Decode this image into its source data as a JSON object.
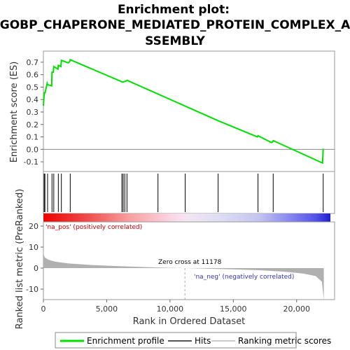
{
  "title_lines": [
    "Enrichment plot:",
    "GOBP_CHAPERONE_MEDIATED_PROTEIN_COMPLEX_A",
    "SSEMBLY"
  ],
  "colors": {
    "es_line": "#00e000",
    "hits": "#000000",
    "zero_line": "#888888",
    "metric_fill": "#b0b0b0",
    "pos_text": "#cc0000",
    "neg_text": "#3333bb",
    "dashed": "#aaaaaa"
  },
  "chart_data": {
    "type": "line",
    "es_panel": {
      "ylabel": "Enrichment score (ES)",
      "ylim": [
        -0.15,
        0.75
      ],
      "yticks": [
        -0.1,
        0.0,
        0.1,
        0.2,
        0.3,
        0.4,
        0.5,
        0.6,
        0.7
      ],
      "ytick_labels": [
        "-0.1",
        "0.0",
        "0.1",
        "0.2",
        "0.3",
        "0.4",
        "0.5",
        "0.6",
        "0.7"
      ],
      "series": [
        {
          "name": "Enrichment profile",
          "x": [
            0,
            60,
            100,
            120,
            300,
            330,
            650,
            680,
            780,
            820,
            1150,
            1180,
            1380,
            1420,
            1950,
            2080,
            2120,
            6150,
            6300,
            6380,
            6430,
            6550,
            6600,
            13800,
            16900,
            16950,
            18000,
            18100,
            18150,
            22050,
            22100
          ],
          "y": [
            0.35,
            0.44,
            0.46,
            0.45,
            0.53,
            0.52,
            0.51,
            0.62,
            0.62,
            0.665,
            0.645,
            0.675,
            0.665,
            0.715,
            0.695,
            0.705,
            0.72,
            0.545,
            0.54,
            0.545,
            0.545,
            0.55,
            0.555,
            0.23,
            0.1,
            0.11,
            0.055,
            0.06,
            0.07,
            -0.11,
            0.005
          ]
        }
      ]
    },
    "hits": [
      60,
      120,
      330,
      680,
      820,
      1180,
      1420,
      2120,
      6200,
      6300,
      6430,
      6600,
      9050,
      11200,
      13800,
      16950,
      18150,
      22100
    ],
    "metric_panel": {
      "ylabel": "Ranked list metric (PreRanked)",
      "ylim": [
        -15,
        22
      ],
      "yticks": [
        -10,
        0,
        10,
        20
      ],
      "ytick_labels": [
        "-10",
        "0",
        "10",
        "20"
      ],
      "profile_x": [
        0,
        30,
        100,
        300,
        600,
        1000,
        2000,
        4000,
        6000,
        8000,
        10000,
        11178,
        13000,
        15000,
        17000,
        19000,
        20500,
        21500,
        22000,
        22150
      ],
      "profile_y": [
        8,
        6.5,
        5.2,
        4.3,
        3.6,
        3.0,
        2.2,
        1.4,
        0.9,
        0.5,
        0.15,
        0,
        -0.3,
        -0.6,
        -1.0,
        -1.7,
        -2.6,
        -3.8,
        -6.5,
        -15
      ]
    },
    "xlabel": "Rank in Ordered Dataset",
    "xlim": [
      0,
      23000
    ],
    "xticks": [
      0,
      5000,
      10000,
      15000,
      20000
    ],
    "xtick_labels": [
      "0",
      "5,000",
      "10,000",
      "15,000",
      "20,000"
    ],
    "zero_cross_x": 11178,
    "annotations": {
      "pos": "'na_pos' (positively correlated)",
      "neg": "'na_neg' (negatively correlated)",
      "zero_cross": "Zero cross at 11178"
    }
  },
  "legend": {
    "items": [
      {
        "label": "Enrichment profile",
        "color": "#00e000",
        "width": 3
      },
      {
        "label": "Hits",
        "color": "#555555",
        "width": 2
      },
      {
        "label": "Ranking metric scores",
        "color": "#cccccc",
        "width": 2
      }
    ]
  }
}
